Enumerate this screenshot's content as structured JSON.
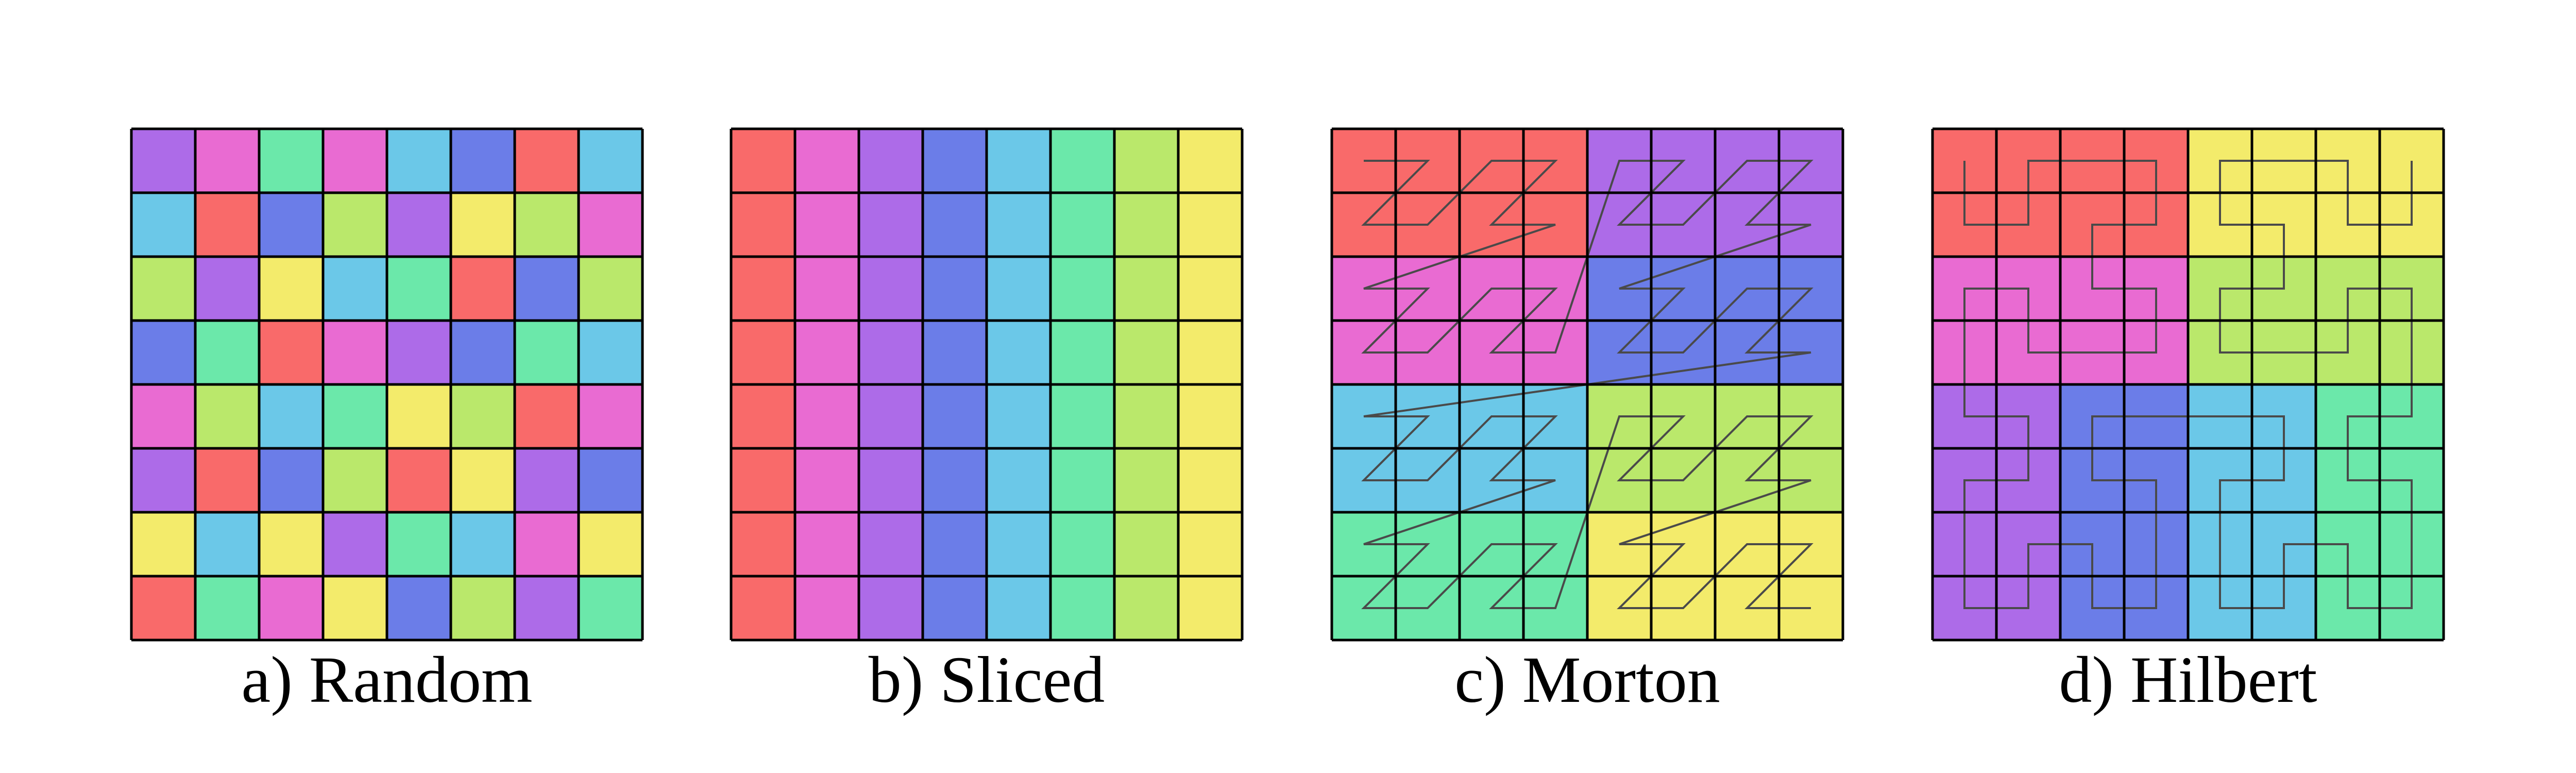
{
  "panels": [
    {
      "caption": "a) Random"
    },
    {
      "caption": "b) Sliced"
    },
    {
      "caption": "c) Morton"
    },
    {
      "caption": "d) Hilbert"
    }
  ]
}
